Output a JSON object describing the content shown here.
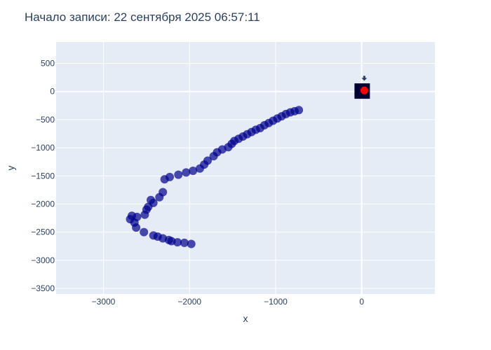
{
  "chart_data": {
    "type": "scatter",
    "title": "Начало записи: 22 сентября 2025 06:57:11",
    "xlabel": "x",
    "ylabel": "y",
    "xlim": [
      -3550,
      850
    ],
    "ylim": [
      -3600,
      880
    ],
    "grid": true,
    "x_ticks": [
      -3000,
      -2000,
      -1000,
      0
    ],
    "x_tick_labels": [
      "−3000",
      "−2000",
      "−1000",
      "0"
    ],
    "y_ticks": [
      500,
      0,
      -500,
      -1000,
      -1500,
      -2000,
      -2500,
      -3000,
      -3500
    ],
    "y_tick_labels": [
      "500",
      "0",
      "−500",
      "−1000",
      "−1500",
      "−2000",
      "−2500",
      "−3000",
      "−3500"
    ],
    "colors": {
      "background": "#e5ecf6",
      "grid": "#ffffff",
      "trail": "#00008b",
      "current": "#ff0000",
      "marker_box": "#000033",
      "arrow": "#2a3f5f"
    },
    "trail": {
      "x": [
        -730,
        -780,
        -830,
        -880,
        -930,
        -980,
        -1030,
        -1080,
        -1130,
        -1180,
        -1230,
        -1280,
        -1330,
        -1380,
        -1430,
        -1480,
        -1510,
        -1550,
        -1620,
        -1680,
        -1720,
        -1790,
        -1830,
        -1880,
        -1960,
        -2040,
        -2130,
        -2230,
        -2290,
        -2310,
        -2350,
        -2420,
        -2450,
        -2480,
        -2500,
        -2520,
        -2610,
        -2670,
        -2690,
        -2640,
        -2620,
        -2530,
        -2420,
        -2370,
        -2310,
        -2240,
        -2210,
        -2140,
        -2060,
        -1980
      ],
      "y": [
        -330,
        -350,
        -370,
        -400,
        -440,
        -480,
        -520,
        -560,
        -600,
        -650,
        -680,
        -720,
        -760,
        -800,
        -840,
        -880,
        -930,
        -990,
        -1030,
        -1080,
        -1150,
        -1230,
        -1300,
        -1370,
        -1410,
        -1440,
        -1480,
        -1520,
        -1560,
        -1790,
        -1880,
        -1980,
        -1930,
        -2050,
        -2100,
        -2190,
        -2230,
        -2210,
        -2270,
        -2330,
        -2420,
        -2500,
        -2560,
        -2580,
        -2610,
        -2640,
        -2660,
        -2680,
        -2690,
        -2710
      ]
    },
    "current": {
      "x": 30,
      "y": 20
    },
    "arrow": {
      "x": 30,
      "y": 240
    }
  }
}
